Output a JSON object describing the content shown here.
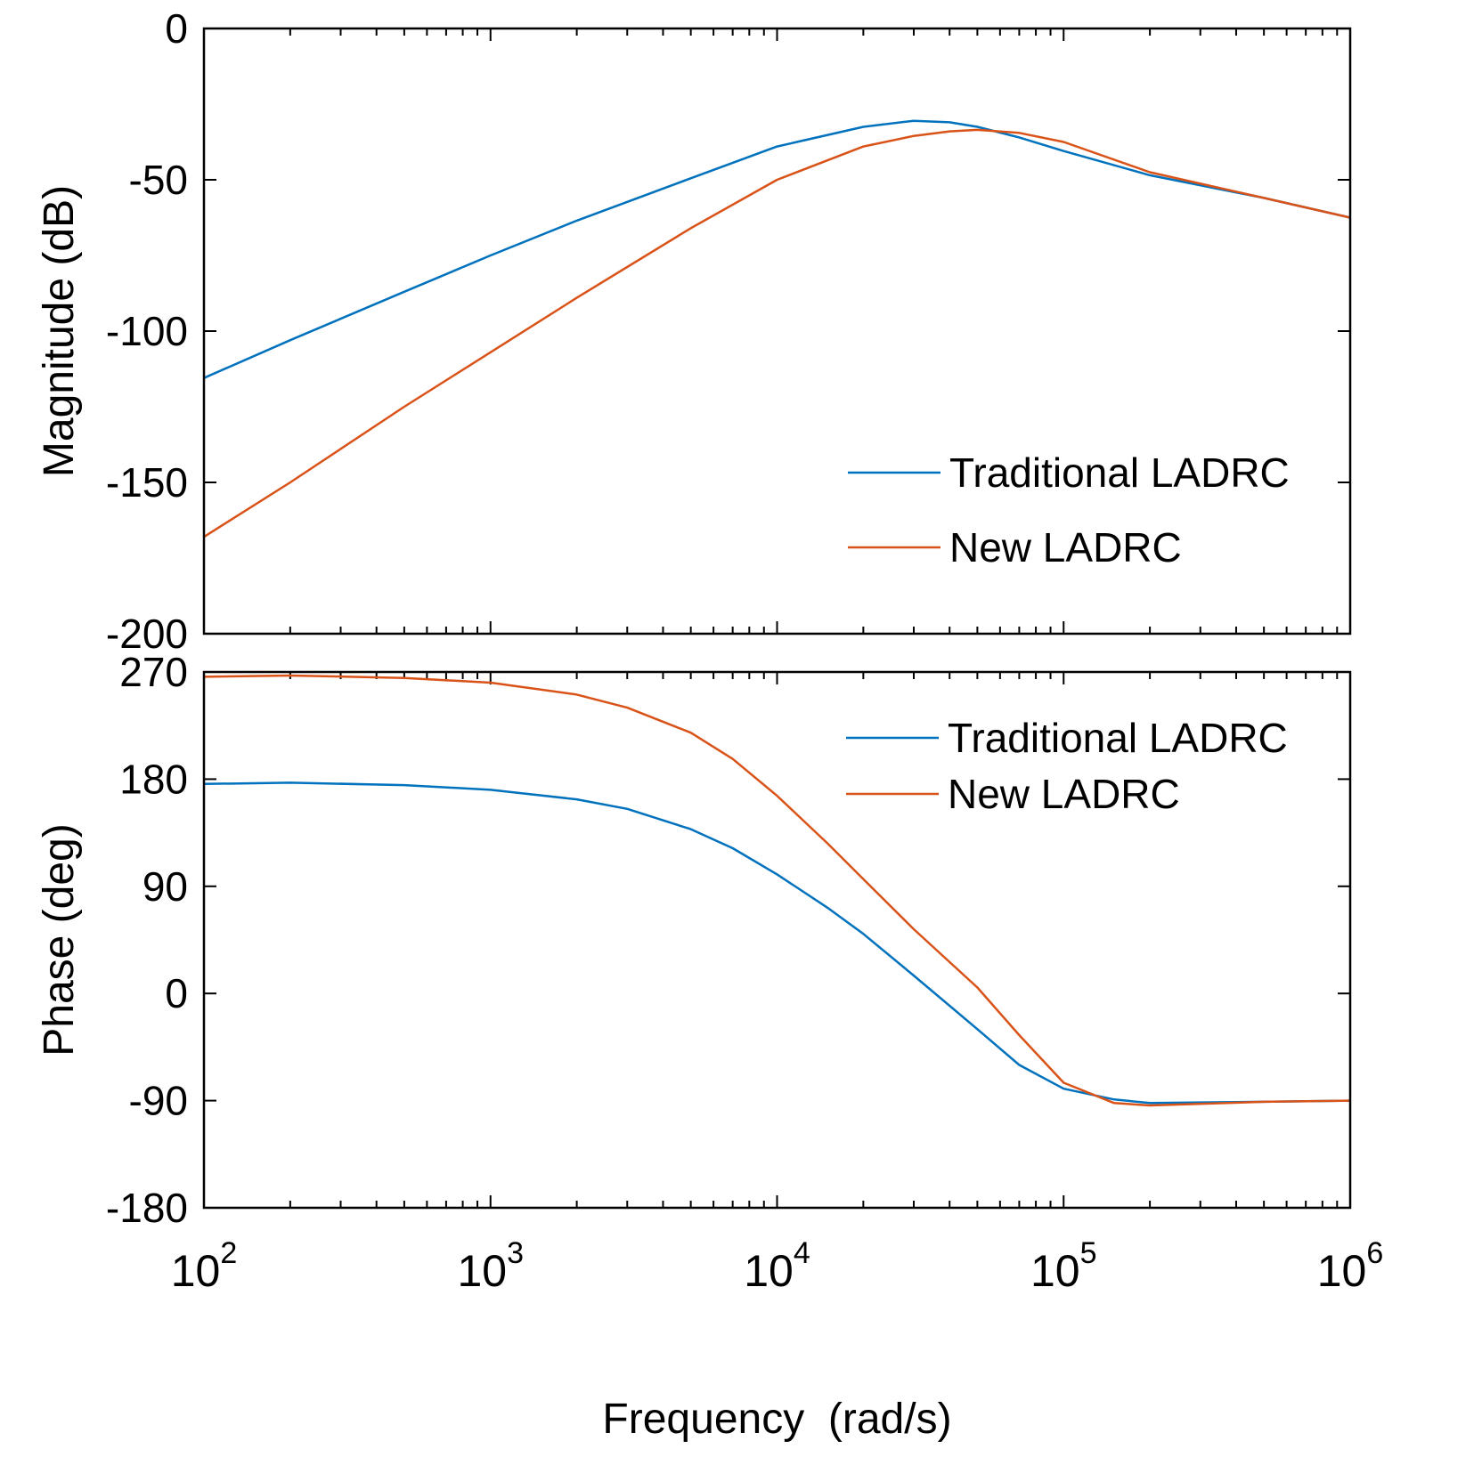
{
  "chart_data": [
    {
      "id": "magnitude",
      "type": "line",
      "xscale": "log",
      "xlim": [
        100,
        1000000
      ],
      "ylim": [
        -200,
        0
      ],
      "yticks": [
        0,
        -50,
        -100,
        -150,
        -200
      ],
      "ytick_labels": [
        "0",
        "-50",
        "-100",
        "-150",
        "-200"
      ],
      "xtick_labels_shown": false,
      "xlabel": "",
      "ylabel": "Magnitude (dB)",
      "legend": "lower-right",
      "series": [
        {
          "name": "Traditional LADRC",
          "color": "#0072BD",
          "x": [
            100,
            200,
            500,
            1000,
            2000,
            5000,
            10000,
            20000,
            30000,
            40000,
            50000,
            70000,
            100000,
            200000,
            500000,
            1000000
          ],
          "y": [
            -115.5,
            -103,
            -87,
            -75,
            -63.5,
            -49.5,
            -39,
            -32.5,
            -30.5,
            -31,
            -32.5,
            -36,
            -40.5,
            -48.5,
            -56,
            -62.5
          ]
        },
        {
          "name": "New LADRC",
          "color": "#D95319",
          "x": [
            100,
            200,
            500,
            1000,
            2000,
            5000,
            10000,
            20000,
            30000,
            40000,
            50000,
            70000,
            100000,
            200000,
            500000,
            1000000
          ],
          "y": [
            -168,
            -150,
            -125,
            -107,
            -89,
            -66,
            -50,
            -39,
            -35.5,
            -34,
            -33.5,
            -34.5,
            -37.5,
            -47.5,
            -56,
            -62.5
          ]
        }
      ]
    },
    {
      "id": "phase",
      "type": "line",
      "xscale": "log",
      "xlim": [
        100,
        1000000
      ],
      "ylim": [
        -180,
        270
      ],
      "yticks": [
        270,
        180,
        90,
        0,
        -90,
        -180
      ],
      "ytick_labels": [
        "270",
        "180",
        "90",
        "0",
        "-90",
        "-180"
      ],
      "xticks": [
        100,
        1000,
        10000,
        100000,
        1000000
      ],
      "xtick_labels": [
        {
          "base": "10",
          "exp": "2"
        },
        {
          "base": "10",
          "exp": "3"
        },
        {
          "base": "10",
          "exp": "4"
        },
        {
          "base": "10",
          "exp": "5"
        },
        {
          "base": "10",
          "exp": "6"
        }
      ],
      "xlabel": "Frequency  (rad/s)",
      "ylabel": "Phase (deg)",
      "legend": "top-right",
      "series": [
        {
          "name": "Traditional LADRC",
          "color": "#0072BD",
          "x": [
            100,
            200,
            500,
            1000,
            2000,
            3000,
            5000,
            7000,
            10000,
            15000,
            20000,
            30000,
            50000,
            70000,
            100000,
            150000,
            200000,
            500000,
            1000000
          ],
          "y": [
            176,
            177,
            175,
            171,
            163,
            155,
            138,
            122,
            100,
            72,
            50,
            15,
            -30,
            -60,
            -80,
            -89,
            -92,
            -91,
            -90
          ]
        },
        {
          "name": "New LADRC",
          "color": "#D95319",
          "x": [
            100,
            200,
            500,
            1000,
            2000,
            3000,
            5000,
            7000,
            10000,
            15000,
            20000,
            30000,
            50000,
            70000,
            100000,
            150000,
            200000,
            500000,
            1000000
          ],
          "y": [
            266,
            267,
            265,
            261,
            251,
            240,
            219,
            197,
            166,
            126,
            96,
            54,
            5,
            -35,
            -75,
            -92,
            -94,
            -91,
            -90
          ]
        }
      ]
    }
  ]
}
